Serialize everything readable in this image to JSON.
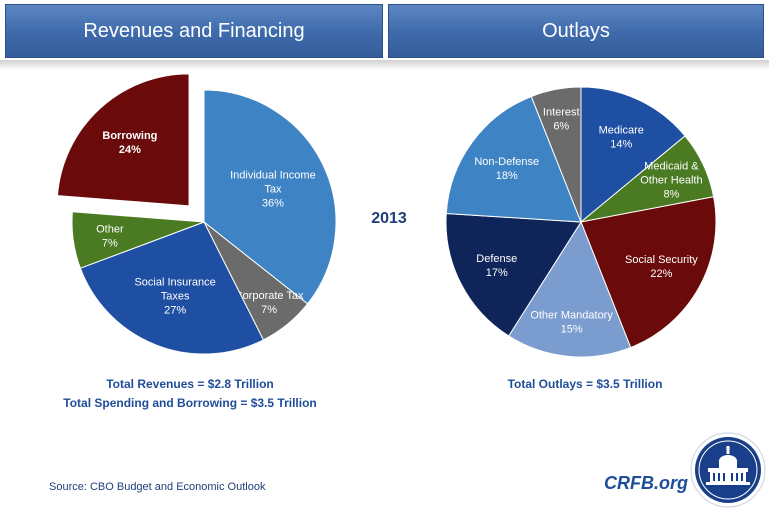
{
  "header": {
    "left_title": "Revenues and Financing",
    "right_title": "Outlays"
  },
  "year_label": "2013",
  "totals": {
    "revenues": "Total Revenues = $2.8  Trillion",
    "spending_borrowing": "Total Spending and Borrowing = $3.5  Trillion",
    "outlays": "Total Outlays = $3.5  Trillion"
  },
  "source": "Source: CBO Budget and Economic Outlook",
  "brand": "CRFB.org",
  "chart_data": [
    {
      "type": "pie",
      "title": "Revenues and Financing",
      "categories": [
        "Individual Income Tax",
        "Corporate Tax",
        "Social Insurance Taxes",
        "Other",
        "Borrowing"
      ],
      "values": [
        36,
        7,
        27,
        7,
        24
      ],
      "label_lines": [
        [
          "Individual Income",
          "Tax",
          "36%"
        ],
        [
          "Corporate Tax",
          "7%"
        ],
        [
          "Social Insurance",
          "Taxes",
          "27%"
        ],
        [
          "Other",
          "7%"
        ],
        [
          "Borrowing",
          "24%"
        ]
      ],
      "exploded": [
        "Borrowing"
      ],
      "colors": [
        "#3e83c4",
        "#6b6b6b",
        "#1e4fa3",
        "#4a7a21",
        "#6a0a0a"
      ]
    },
    {
      "type": "pie",
      "title": "Outlays",
      "categories": [
        "Medicare",
        "Medicaid & Other Health",
        "Social Security",
        "Other Mandatory",
        "Defense",
        "Non-Defense",
        "Interest"
      ],
      "values": [
        14,
        8,
        22,
        15,
        17,
        18,
        6
      ],
      "label_lines": [
        [
          "Medicare",
          "14%"
        ],
        [
          "Medicaid &",
          "Other Health",
          "8%"
        ],
        [
          "Social Security",
          "22%"
        ],
        [
          "Other Mandatory",
          "15%"
        ],
        [
          "Defense",
          "17%"
        ],
        [
          "Non-Defense",
          "18%"
        ],
        [
          "Interest",
          "6%"
        ]
      ],
      "exploded": [],
      "colors": [
        "#1e4fa3",
        "#4a7a21",
        "#6a0a0a",
        "#7a9ccf",
        "#0f2458",
        "#3e83c4",
        "#6b6b6b"
      ]
    }
  ]
}
